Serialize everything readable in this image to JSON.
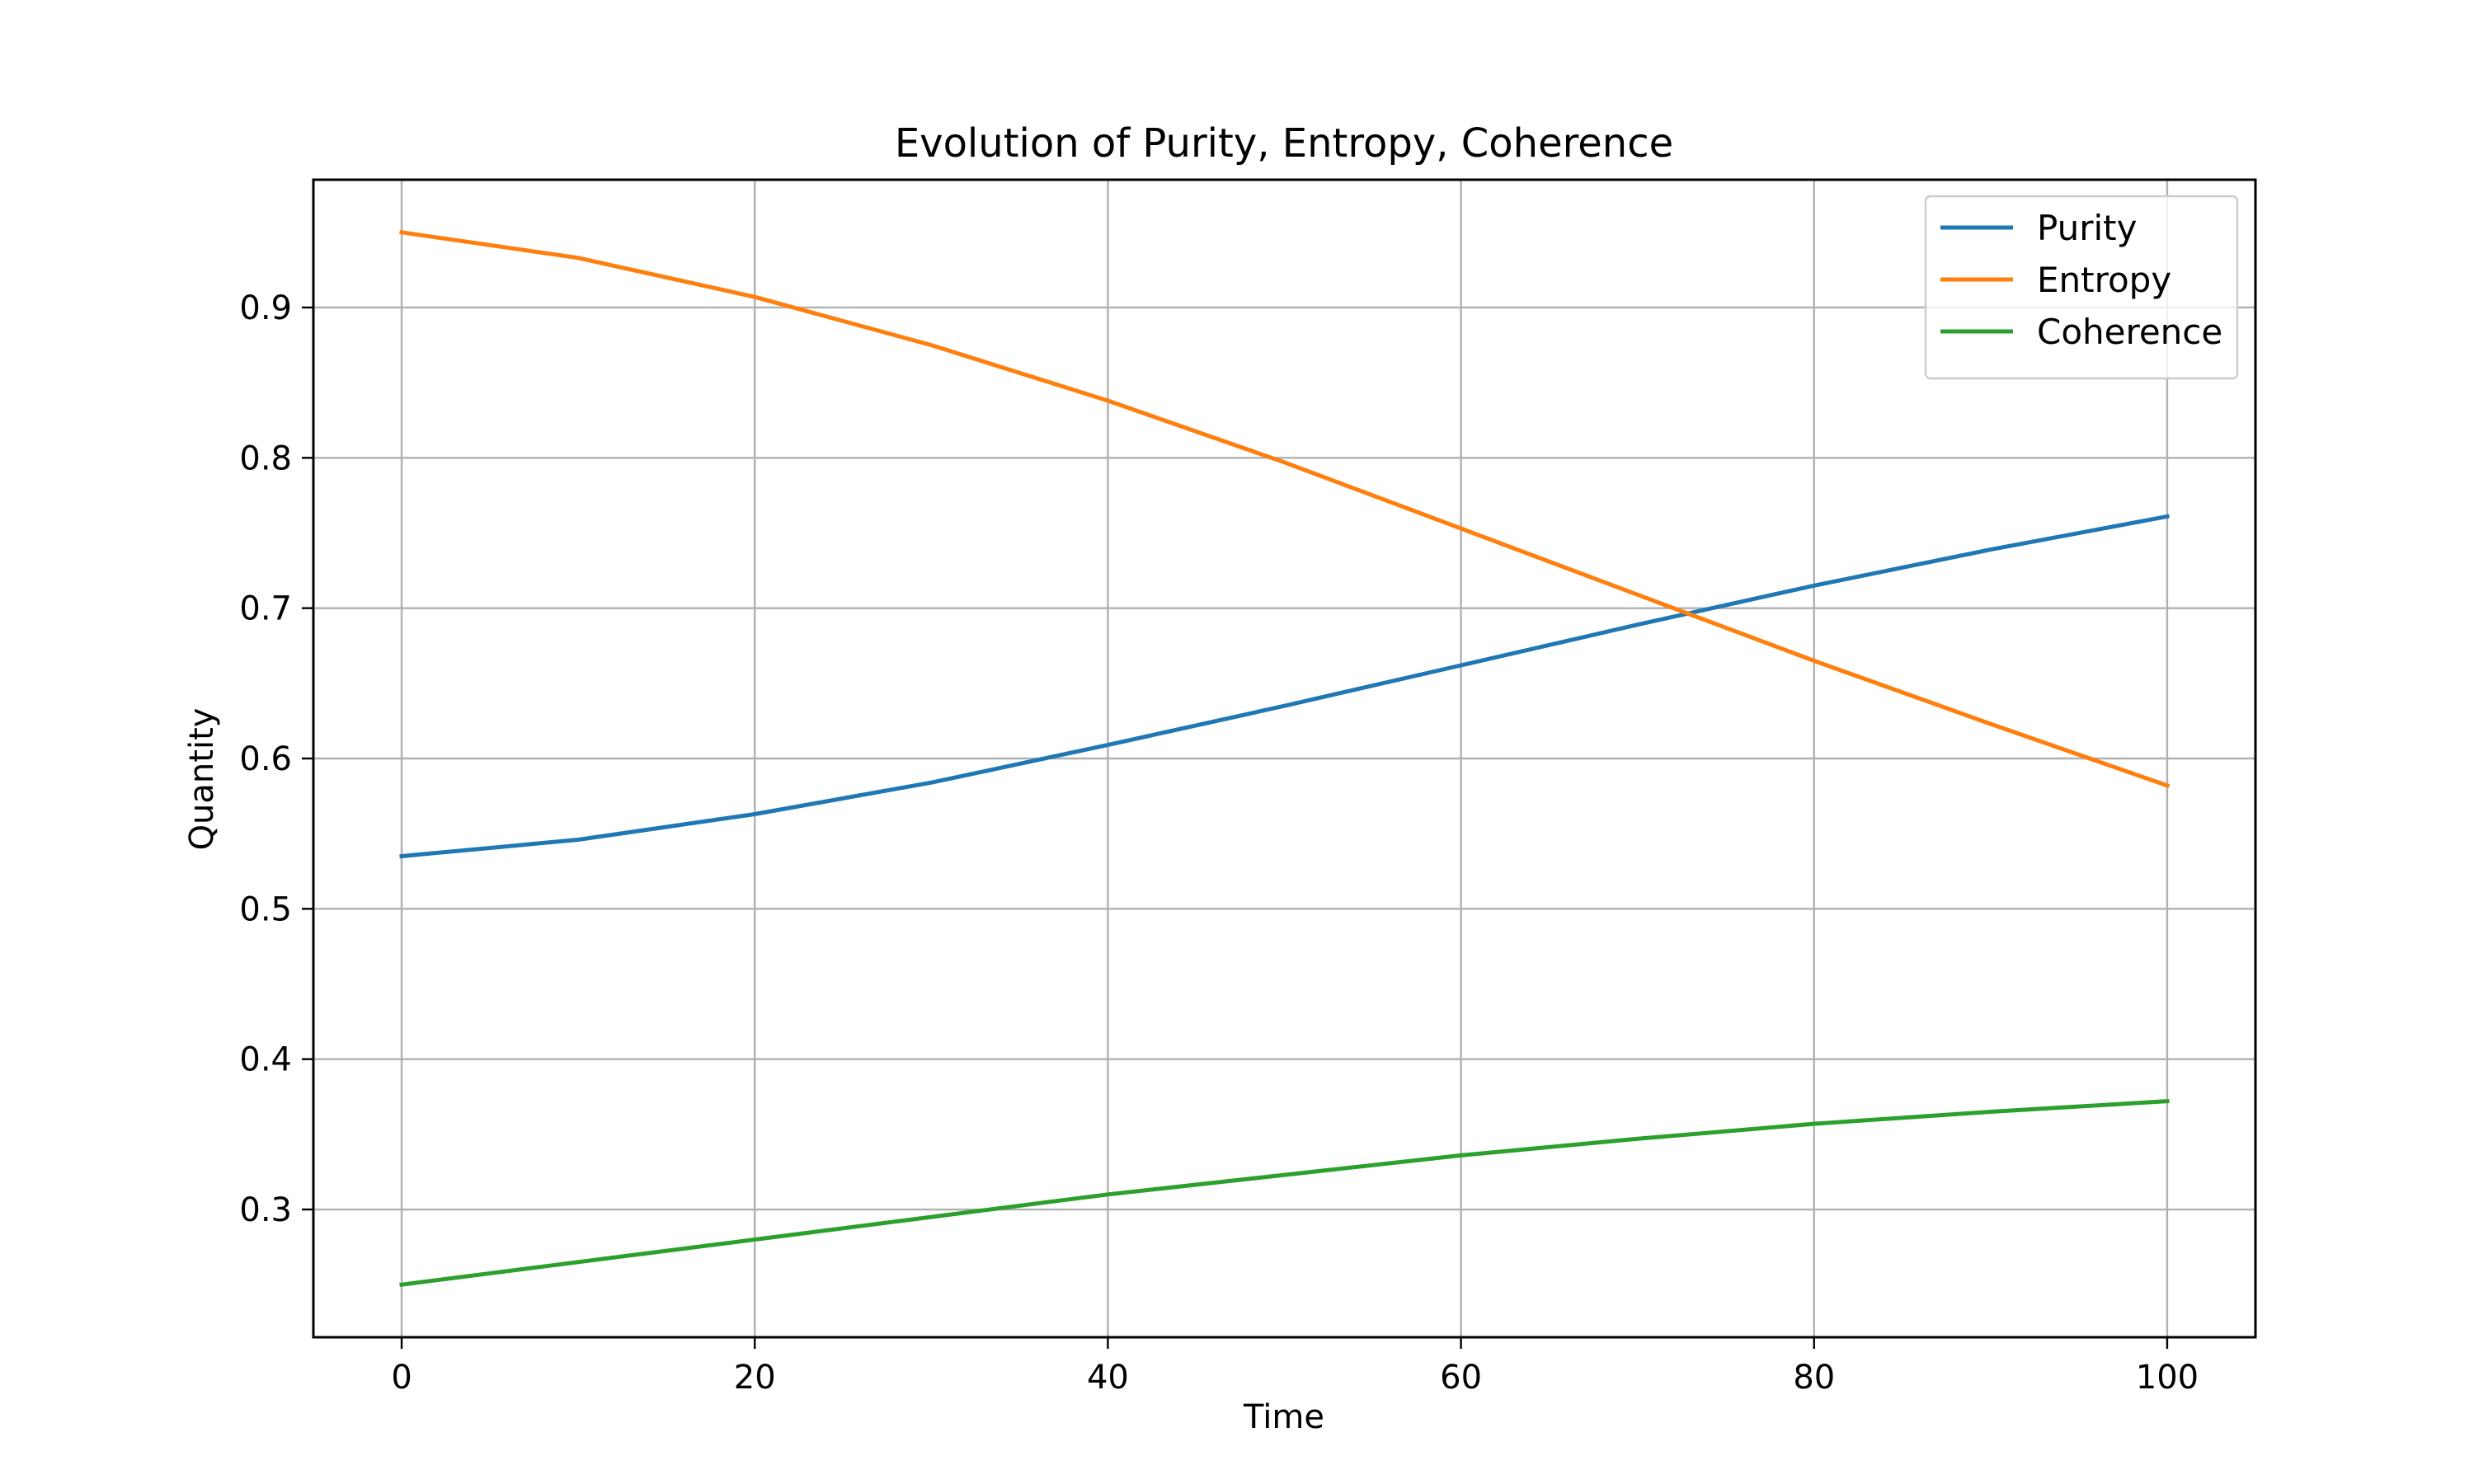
{
  "chart_data": {
    "type": "line",
    "title": "Evolution of Purity, Entropy, Coherence",
    "xlabel": "Time",
    "ylabel": "Quantity",
    "xlim": [
      -5,
      105
    ],
    "ylim": [
      0.215,
      0.985
    ],
    "xticks": [
      0,
      20,
      40,
      60,
      80,
      100
    ],
    "xtick_labels": [
      "0",
      "20",
      "40",
      "60",
      "80",
      "100"
    ],
    "yticks": [
      0.3,
      0.4,
      0.5,
      0.6,
      0.7,
      0.8,
      0.9
    ],
    "ytick_labels": [
      "0.3",
      "0.4",
      "0.5",
      "0.6",
      "0.7",
      "0.8",
      "0.9"
    ],
    "grid": true,
    "legend_position": "top-right",
    "x": [
      0,
      10,
      20,
      30,
      40,
      50,
      60,
      70,
      80,
      90,
      100
    ],
    "series": [
      {
        "name": "Purity",
        "color": "#1f77b4",
        "values": [
          0.535,
          0.546,
          0.563,
          0.584,
          0.609,
          0.635,
          0.662,
          0.689,
          0.715,
          0.739,
          0.761
        ]
      },
      {
        "name": "Entropy",
        "color": "#ff7f0e",
        "values": [
          0.95,
          0.933,
          0.907,
          0.875,
          0.838,
          0.797,
          0.753,
          0.709,
          0.665,
          0.623,
          0.582
        ]
      },
      {
        "name": "Coherence",
        "color": "#2ca02c",
        "values": [
          0.25,
          0.265,
          0.28,
          0.295,
          0.31,
          0.323,
          0.336,
          0.347,
          0.357,
          0.365,
          0.372
        ]
      }
    ]
  }
}
